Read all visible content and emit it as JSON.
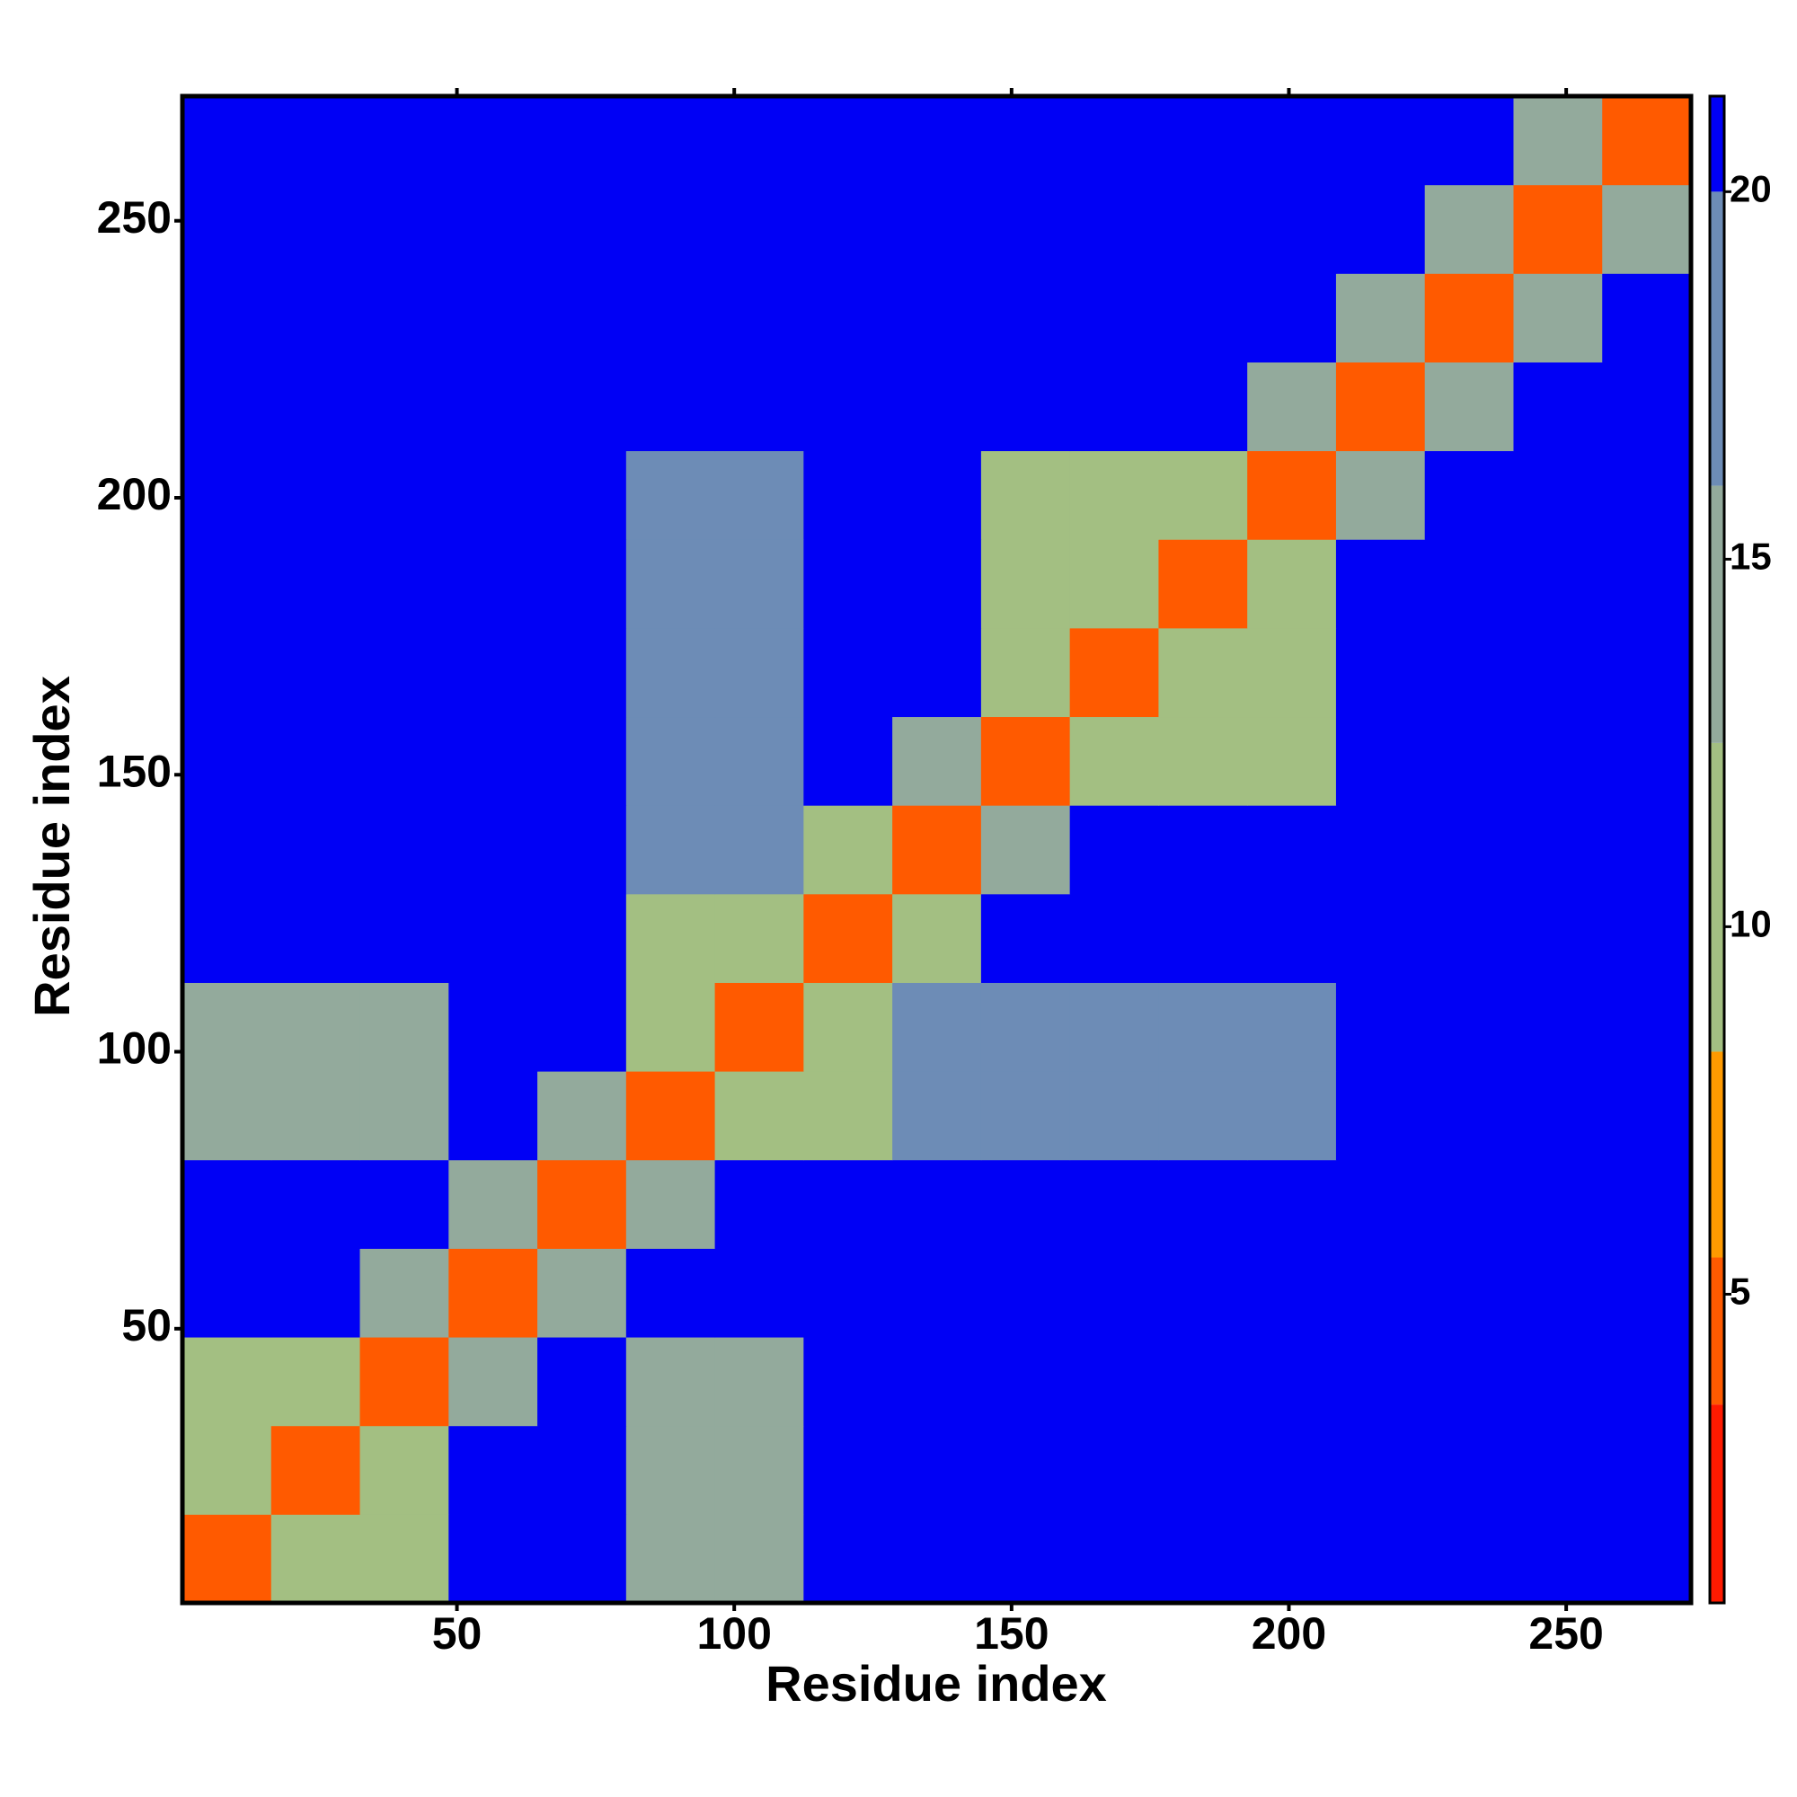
{
  "chart_data": {
    "type": "heatmap",
    "xlabel": "Residue index",
    "ylabel": "Residue index",
    "x_bins": [
      0.5,
      16.5,
      32.5,
      48.5,
      64.5,
      80.5,
      96.5,
      112.5,
      128.5,
      144.5,
      160.5,
      176.5,
      192.5,
      208.5,
      224.5,
      240.5,
      256.5,
      272.5
    ],
    "y_bins": [
      0.5,
      16.5,
      32.5,
      48.5,
      64.5,
      80.5,
      96.5,
      112.5,
      128.5,
      144.5,
      160.5,
      176.5,
      192.5,
      208.5,
      224.5,
      240.5,
      256.5,
      272.5
    ],
    "values": [
      [
        4,
        12,
        12,
        21,
        21,
        14,
        14,
        21,
        21,
        21,
        21,
        21,
        21,
        21,
        21,
        21,
        21
      ],
      [
        12,
        4,
        12,
        21,
        21,
        14,
        14,
        21,
        21,
        21,
        21,
        21,
        21,
        21,
        21,
        21,
        21
      ],
      [
        12,
        12,
        4,
        15,
        21,
        14,
        14,
        21,
        21,
        21,
        21,
        21,
        21,
        21,
        21,
        21,
        21
      ],
      [
        21,
        21,
        15,
        4,
        15,
        21,
        21,
        21,
        21,
        21,
        21,
        21,
        21,
        21,
        21,
        21,
        21
      ],
      [
        21,
        21,
        21,
        15,
        4,
        15,
        21,
        21,
        21,
        21,
        21,
        21,
        21,
        21,
        21,
        21,
        21
      ],
      [
        14,
        14,
        14,
        21,
        15,
        4,
        11,
        11,
        17,
        17,
        17,
        17,
        17,
        21,
        21,
        21,
        21
      ],
      [
        14,
        14,
        14,
        21,
        21,
        11,
        4,
        11,
        17,
        17,
        17,
        17,
        17,
        21,
        21,
        21,
        21
      ],
      [
        21,
        21,
        21,
        21,
        21,
        11,
        11,
        4,
        12,
        21,
        21,
        21,
        21,
        21,
        21,
        21,
        21
      ],
      [
        21,
        21,
        21,
        21,
        21,
        17,
        17,
        12,
        4,
        15,
        21,
        21,
        21,
        21,
        21,
        21,
        21
      ],
      [
        21,
        21,
        21,
        21,
        21,
        17,
        17,
        21,
        15,
        4,
        11,
        11,
        11,
        21,
        21,
        21,
        21
      ],
      [
        21,
        21,
        21,
        21,
        21,
        17,
        17,
        21,
        21,
        11,
        4,
        11,
        11,
        21,
        21,
        21,
        21
      ],
      [
        21,
        21,
        21,
        21,
        21,
        17,
        17,
        21,
        21,
        11,
        11,
        4,
        11,
        21,
        21,
        21,
        21
      ],
      [
        21,
        21,
        21,
        21,
        21,
        17,
        17,
        21,
        21,
        11,
        11,
        11,
        4,
        14,
        21,
        21,
        21
      ],
      [
        21,
        21,
        21,
        21,
        21,
        21,
        21,
        21,
        21,
        21,
        21,
        21,
        14,
        4,
        14,
        21,
        21
      ],
      [
        21,
        21,
        21,
        21,
        21,
        21,
        21,
        21,
        21,
        21,
        21,
        21,
        21,
        14,
        4,
        14,
        21
      ],
      [
        21,
        21,
        21,
        21,
        21,
        21,
        21,
        21,
        21,
        21,
        21,
        21,
        21,
        21,
        14,
        4,
        14
      ],
      [
        21,
        21,
        21,
        21,
        21,
        21,
        21,
        21,
        21,
        21,
        21,
        21,
        21,
        21,
        21,
        14,
        4
      ]
    ],
    "xlim": [
      0.5,
      272.5
    ],
    "ylim": [
      0.5,
      272.5
    ],
    "xticks": [
      50,
      100,
      150,
      200,
      250
    ],
    "yticks": [
      50,
      100,
      150,
      200,
      250
    ],
    "clim": [
      0.8,
      21.3
    ],
    "cticks": [
      5,
      10,
      15,
      20
    ],
    "colorscale": [
      [
        3.5,
        "#ff1a00"
      ],
      [
        5.5,
        "#ff5a00"
      ],
      [
        8.3,
        "#ff9a00"
      ],
      [
        12.5,
        "#a3bf82"
      ],
      [
        16,
        "#93aa9c"
      ],
      [
        20,
        "#6d8cb6"
      ],
      [
        21.3,
        "#0000f5"
      ]
    ]
  }
}
